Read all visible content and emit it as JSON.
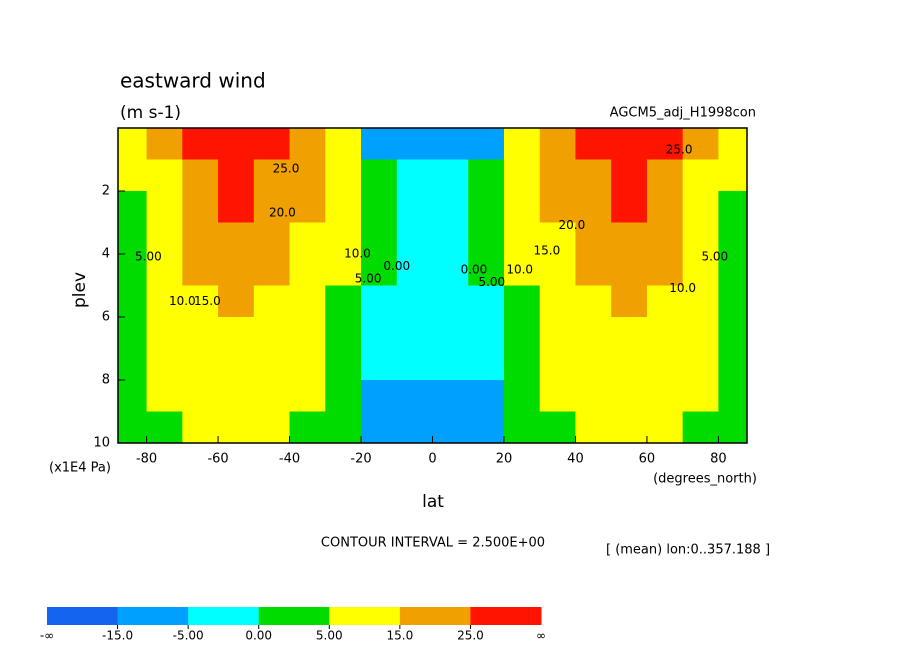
{
  "chart_data": {
    "type": "contour",
    "title": "eastward wind",
    "subtitle": "(m s-1)",
    "run_name": "AGCM5_adj_H1998con",
    "ylabel": "plev",
    "yunit": "(x1E4 Pa)",
    "xlabel": "lat",
    "xunit": "(degrees_north)",
    "contour_interval": "CONTOUR INTERVAL = 2.500E+00",
    "mean_note": "[ (mean) lon:0..357.188 ]",
    "xlim": [
      -88,
      88
    ],
    "xticks": [
      -80,
      -60,
      -40,
      -20,
      0,
      20,
      40,
      60,
      80
    ],
    "ylim": [
      0,
      10
    ],
    "yticks": [
      2,
      4,
      6,
      8,
      10
    ],
    "field": {
      "lat": [
        -85,
        -75,
        -65,
        -55,
        -45,
        -35,
        -25,
        -15,
        -5,
        5,
        15,
        25,
        35,
        45,
        55,
        65,
        75,
        85
      ],
      "plev": [
        0.5,
        1.5,
        2.5,
        3.5,
        4.5,
        5.5,
        6.5,
        7.5,
        8.5,
        9.5
      ],
      "values": [
        [
          5,
          15,
          25,
          30,
          28,
          20,
          5,
          -10,
          -15,
          -15,
          -10,
          5,
          20,
          28,
          30,
          25,
          15,
          5
        ],
        [
          5,
          12,
          22,
          27,
          24,
          20,
          10,
          2,
          -1,
          -1,
          2,
          10,
          20,
          24,
          27,
          22,
          12,
          5
        ],
        [
          4,
          10,
          20,
          25,
          21,
          18,
          10,
          2,
          -1,
          -1,
          2,
          10,
          18,
          21,
          25,
          20,
          10,
          4
        ],
        [
          3,
          9,
          17,
          21,
          18,
          14,
          8,
          1,
          -1,
          -1,
          1,
          8,
          14,
          18,
          21,
          17,
          9,
          3
        ],
        [
          3,
          8,
          15,
          18,
          16,
          11,
          5,
          0,
          -2,
          -2,
          0,
          5,
          11,
          16,
          18,
          15,
          8,
          3
        ],
        [
          3,
          7,
          13,
          17,
          14,
          9,
          4,
          -1,
          -2,
          -2,
          -1,
          4,
          9,
          14,
          17,
          13,
          7,
          3
        ],
        [
          2,
          6,
          11,
          14,
          12,
          7,
          3,
          -1,
          -3,
          -3,
          -1,
          3,
          7,
          12,
          14,
          11,
          6,
          2
        ],
        [
          2,
          5,
          9,
          11,
          9,
          6,
          2,
          -3,
          -4,
          -4,
          -3,
          2,
          6,
          9,
          11,
          9,
          5,
          2
        ],
        [
          2,
          5,
          7,
          9,
          8,
          5,
          1,
          -6,
          -7,
          -7,
          -6,
          1,
          5,
          8,
          9,
          7,
          5,
          2
        ],
        [
          2,
          4,
          6,
          7,
          7,
          4,
          0,
          -7,
          -6,
          -6,
          -7,
          0,
          4,
          7,
          7,
          6,
          4,
          2
        ]
      ]
    },
    "contour_labels": [
      {
        "value": 25,
        "label": "25.0",
        "lat": -41,
        "plev": 1.3
      },
      {
        "value": 20,
        "label": "20.0",
        "lat": -42,
        "plev": 2.7
      },
      {
        "value": 15,
        "label": "15.0",
        "lat": -63,
        "plev": 5.5
      },
      {
        "value": 10,
        "label": "10.0",
        "lat": -70,
        "plev": 5.5
      },
      {
        "value": 5,
        "label": "5.00",
        "lat": -79.5,
        "plev": 4.1
      },
      {
        "value": 10,
        "label": "10.0",
        "lat": -21,
        "plev": 4.0
      },
      {
        "value": 5,
        "label": "5.00",
        "lat": -18,
        "plev": 4.8
      },
      {
        "value": 0,
        "label": "0.00",
        "lat": -10,
        "plev": 4.4
      },
      {
        "value": 0,
        "label": "0.00",
        "lat": 11.6,
        "plev": 4.5
      },
      {
        "value": 5,
        "label": "5.00",
        "lat": 16.6,
        "plev": 4.9
      },
      {
        "value": 10,
        "label": "10.0",
        "lat": 24.4,
        "plev": 4.5
      },
      {
        "value": 15,
        "label": "15.0",
        "lat": 32,
        "plev": 3.9
      },
      {
        "value": 20,
        "label": "20.0",
        "lat": 39,
        "plev": 3.1
      },
      {
        "value": 25,
        "label": "25.0",
        "lat": 69,
        "plev": 0.7
      },
      {
        "value": 10,
        "label": "10.0",
        "lat": 70,
        "plev": 5.1
      },
      {
        "value": 5,
        "label": "5.00",
        "lat": 79,
        "plev": 4.1
      }
    ],
    "colorbar": {
      "low_label": "-∞",
      "high_label": "∞",
      "bounds": [
        {
          "value": -15,
          "label": "-15.0"
        },
        {
          "value": -5,
          "label": "-5.00"
        },
        {
          "value": 0,
          "label": "0.00"
        },
        {
          "value": 5,
          "label": "5.00"
        },
        {
          "value": 15,
          "label": "15.0"
        },
        {
          "value": 25,
          "label": "25.0"
        }
      ],
      "colors": [
        "#1464f0",
        "#00a0ff",
        "#00ffff",
        "#00dc00",
        "#ffff00",
        "#f0a000",
        "#ff1400"
      ]
    }
  }
}
